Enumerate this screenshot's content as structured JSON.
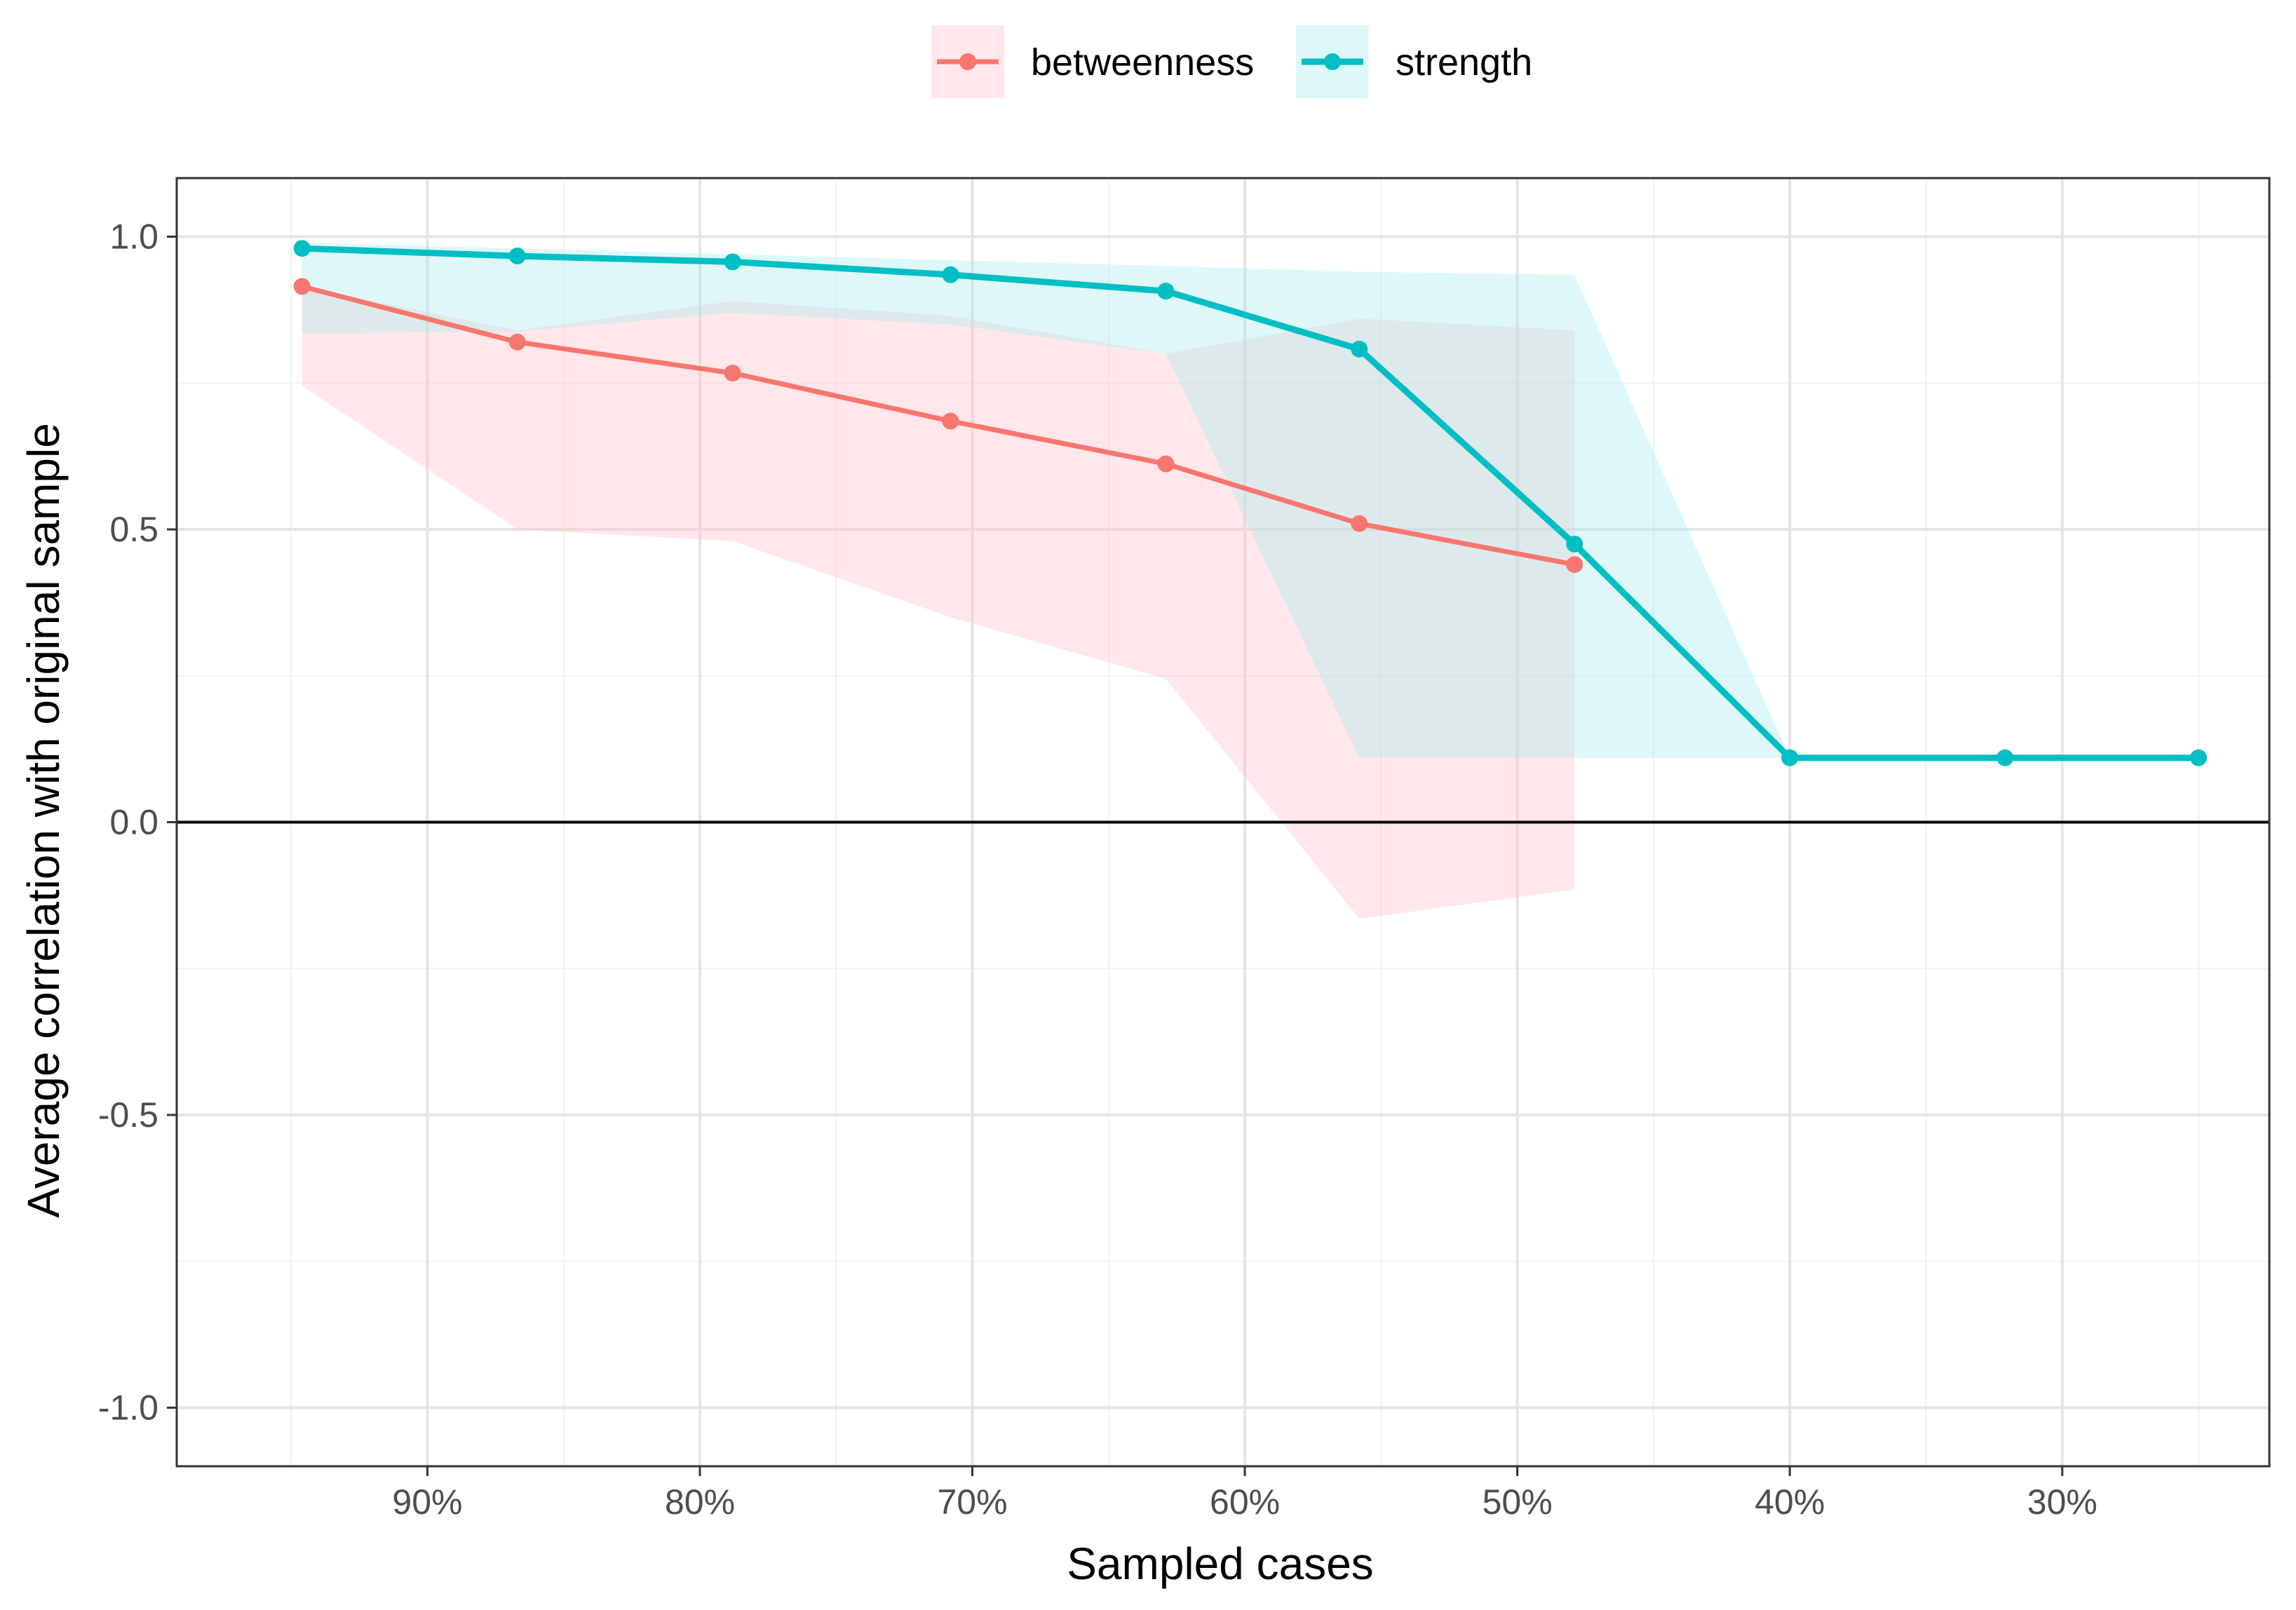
{
  "chart_data": {
    "type": "line",
    "title": "",
    "xlabel": "Sampled cases",
    "ylabel": "Average correlation with original sample",
    "xlim": [
      0.992,
      0.224
    ],
    "x_reversed": true,
    "ylim": [
      -1.1,
      1.1
    ],
    "x_ticks": [
      0.9,
      0.8,
      0.7,
      0.6,
      0.5,
      0.4,
      0.3
    ],
    "x_tick_labels": [
      "90%",
      "80%",
      "70%",
      "60%",
      "50%",
      "40%",
      "30%"
    ],
    "x_minor_ticks": [
      0.95,
      0.85,
      0.75,
      0.65,
      0.55,
      0.45,
      0.35,
      0.25
    ],
    "y_ticks": [
      -1.0,
      -0.5,
      0.0,
      0.5,
      1.0
    ],
    "y_tick_labels": [
      "-1.0",
      "-0.5",
      "0.0",
      "0.5",
      "1.0"
    ],
    "y_minor_ticks": [
      -0.75,
      -0.25,
      0.25,
      0.75
    ],
    "hline": 0,
    "grid": true,
    "legend_position": "top",
    "series": [
      {
        "name": "betweenness",
        "color": "#f8766d",
        "fill": "#ffc0c8",
        "x": [
          0.946,
          0.867,
          0.788,
          0.708,
          0.629,
          0.558,
          0.479
        ],
        "y": [
          0.915,
          0.82,
          0.767,
          0.685,
          0.612,
          0.51,
          0.44
        ],
        "lower": [
          0.745,
          0.5,
          0.48,
          0.35,
          0.245,
          -0.165,
          -0.115
        ],
        "upper": [
          0.915,
          0.84,
          0.89,
          0.865,
          0.8,
          0.86,
          0.84
        ]
      },
      {
        "name": "strength",
        "color": "#00bfc4",
        "fill": "#a8ecf0",
        "x": [
          0.946,
          0.867,
          0.788,
          0.708,
          0.629,
          0.558,
          0.479,
          0.4,
          0.321,
          0.25
        ],
        "y": [
          0.98,
          0.967,
          0.957,
          0.935,
          0.907,
          0.808,
          0.475,
          0.11,
          0.11,
          0.11
        ],
        "lower": [
          0.835,
          0.838,
          0.87,
          0.85,
          0.8,
          0.11,
          0.11,
          0.11,
          null,
          null
        ],
        "upper": [
          0.99,
          0.98,
          0.97,
          0.96,
          0.95,
          0.94,
          0.935,
          0.11,
          null,
          null
        ]
      }
    ]
  }
}
